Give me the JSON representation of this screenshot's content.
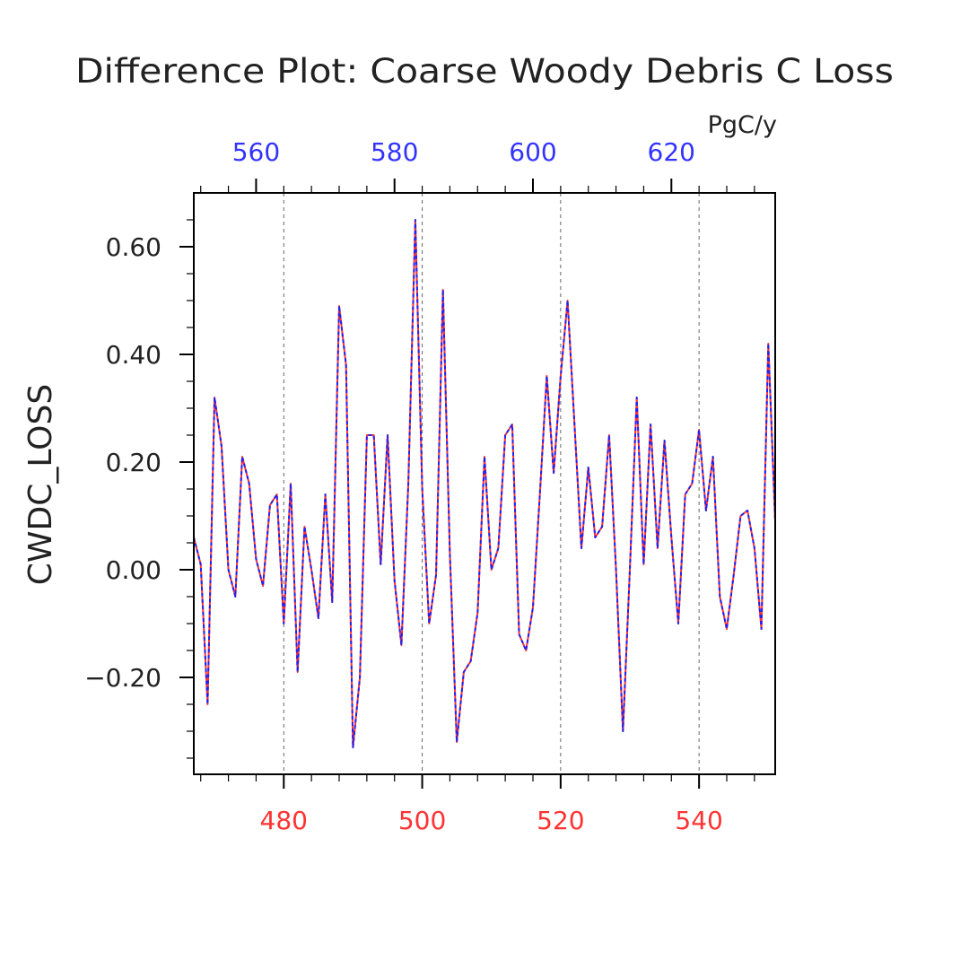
{
  "chart_data": {
    "type": "line",
    "title": "Difference Plot: Coarse Woody Debris C Loss",
    "units": "PgC/y",
    "ylabel": "CWDC_LOSS",
    "xlim_bottom": [
      467,
      551
    ],
    "xlim_top": [
      551,
      635
    ],
    "ylim": [
      -0.38,
      0.7
    ],
    "xticks_bottom": [
      480,
      500,
      520,
      540
    ],
    "xticks_top": [
      560,
      580,
      600,
      620
    ],
    "yticks": [
      -0.2,
      0.0,
      0.2,
      0.4,
      0.6
    ],
    "ytick_labels": [
      "−0.20",
      "0.00",
      "0.20",
      "0.40",
      "0.60"
    ],
    "grid": "vertical dashed at bottom ticks",
    "colors": {
      "bottom_axis": "#ff3333",
      "top_axis": "#3333ff",
      "series_a": "#ff3333",
      "series_b": "#2222ee",
      "frame": "#000000"
    },
    "series": [
      {
        "color": "#ff3333",
        "style": "solid",
        "values": [
          0.06,
          0.01,
          -0.25,
          0.32,
          0.23,
          0.0,
          -0.05,
          0.21,
          0.16,
          0.02,
          -0.03,
          0.12,
          0.14,
          -0.1,
          0.16,
          -0.19,
          0.08,
          0.0,
          -0.09,
          0.14,
          -0.06,
          0.49,
          0.38,
          -0.33,
          -0.2,
          0.25,
          0.25,
          0.01,
          0.25,
          -0.02,
          -0.14,
          0.16,
          0.65,
          0.15,
          -0.1,
          -0.01,
          0.52,
          0.03,
          -0.32,
          -0.19,
          -0.17,
          -0.08,
          0.21,
          0.0,
          0.04,
          0.25,
          0.27,
          -0.12,
          -0.15,
          -0.07,
          0.14,
          0.36,
          0.18,
          0.36,
          0.5,
          0.27,
          0.04,
          0.19,
          0.06,
          0.08,
          0.25,
          0.0,
          -0.3,
          0.0,
          0.32,
          0.01,
          0.27,
          0.04,
          0.24,
          0.06,
          -0.1,
          0.14,
          0.16,
          0.26,
          0.11,
          0.21,
          -0.05,
          -0.11,
          -0.01,
          0.1,
          0.11,
          0.04,
          -0.11,
          0.42,
          0.09
        ]
      },
      {
        "color": "#2222ee",
        "style": "dashed",
        "values": [
          0.06,
          0.01,
          -0.25,
          0.32,
          0.23,
          0.0,
          -0.05,
          0.21,
          0.16,
          0.02,
          -0.03,
          0.12,
          0.14,
          -0.1,
          0.16,
          -0.19,
          0.08,
          0.0,
          -0.09,
          0.14,
          -0.06,
          0.49,
          0.38,
          -0.33,
          -0.2,
          0.25,
          0.25,
          0.01,
          0.25,
          -0.02,
          -0.14,
          0.16,
          0.65,
          0.15,
          -0.1,
          -0.01,
          0.52,
          0.03,
          -0.32,
          -0.19,
          -0.17,
          -0.08,
          0.21,
          0.0,
          0.04,
          0.25,
          0.27,
          -0.12,
          -0.15,
          -0.07,
          0.14,
          0.36,
          0.18,
          0.36,
          0.5,
          0.27,
          0.04,
          0.19,
          0.06,
          0.08,
          0.25,
          0.0,
          -0.3,
          0.0,
          0.32,
          0.01,
          0.27,
          0.04,
          0.24,
          0.06,
          -0.1,
          0.14,
          0.16,
          0.26,
          0.11,
          0.21,
          -0.05,
          -0.11,
          -0.01,
          0.1,
          0.11,
          0.04,
          -0.11,
          0.42,
          0.09
        ]
      }
    ]
  }
}
